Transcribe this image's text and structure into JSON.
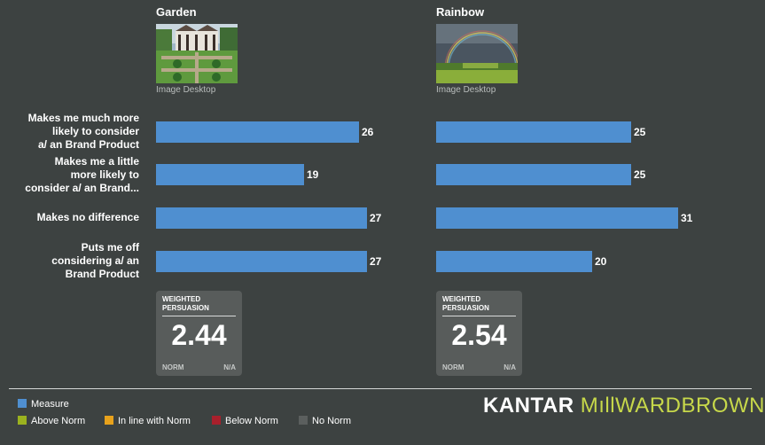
{
  "columns": [
    {
      "title": "Garden",
      "caption": "Image Desktop",
      "image_icon": "garden-photo"
    },
    {
      "title": "Rainbow",
      "caption": "Image Desktop",
      "image_icon": "rainbow-photo"
    }
  ],
  "chart_data": {
    "type": "bar",
    "orientation": "horizontal",
    "categories": [
      "Makes me much more likely to consider a/ an Brand Product",
      "Makes me a little more likely to consider a/ an Brand...",
      "Makes no difference",
      "Puts me off considering a/ an Brand Product"
    ],
    "category_lines": [
      [
        "Makes me much more",
        "likely to consider",
        "a/ an Brand Product"
      ],
      [
        "Makes me a little",
        "more likely to",
        "consider a/ an Brand..."
      ],
      [
        "Makes no difference"
      ],
      [
        "Puts me off",
        "considering a/ an",
        "Brand Product"
      ]
    ],
    "series": [
      {
        "name": "Garden",
        "values": [
          26,
          19,
          27,
          27
        ]
      },
      {
        "name": "Rainbow",
        "values": [
          25,
          25,
          31,
          20
        ]
      }
    ],
    "xlim": [
      0,
      35
    ],
    "bar_color": "#4f8fd0"
  },
  "weighted_persuasion": {
    "label_line1": "WEIGHTED",
    "label_line2": "PERSUASION",
    "norm_label": "NORM",
    "items": [
      {
        "value": "2.44",
        "norm": "N/A"
      },
      {
        "value": "2.54",
        "norm": "N/A"
      }
    ]
  },
  "legend": {
    "measure": {
      "label": "Measure",
      "color": "#4f8fd0"
    },
    "items": [
      {
        "label": "Above Norm",
        "color": "#9bb21f"
      },
      {
        "label": "In line with Norm",
        "color": "#e8a21c"
      },
      {
        "label": "Below Norm",
        "color": "#a9202c"
      },
      {
        "label": "No Norm",
        "color": "#5b5f5e"
      }
    ]
  },
  "logo": {
    "part1": "KANTAR",
    "part2": "MILLWARDBROWN",
    "part2_display": "MıllWARDBROWN"
  }
}
